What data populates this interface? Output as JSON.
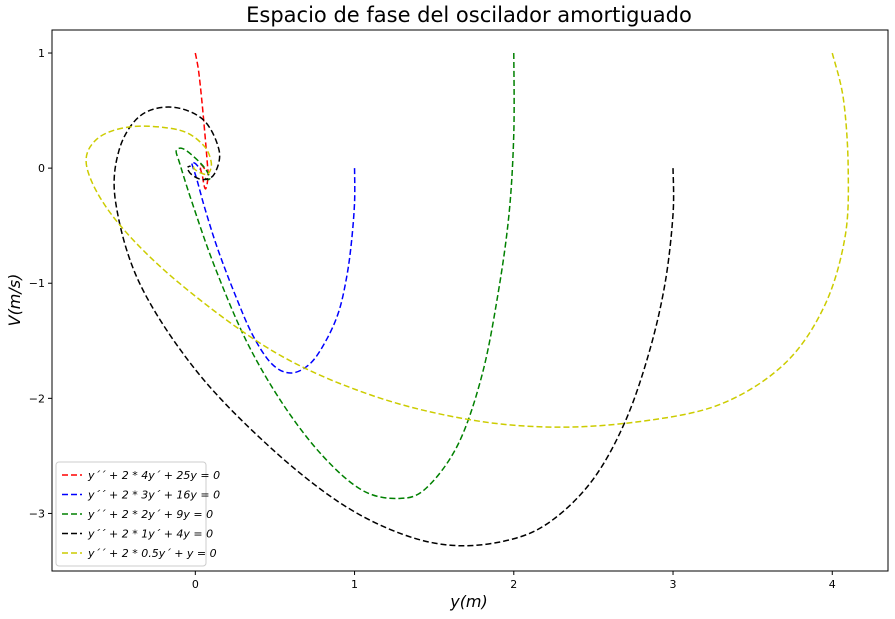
{
  "chart_data": {
    "type": "line",
    "title": "Espacio de fase del oscilador amortiguado",
    "xlabel": "y(m)",
    "ylabel": "V(m/s)",
    "xlim": [
      -0.9,
      4.35
    ],
    "ylim": [
      -3.5,
      1.2
    ],
    "xticks": [
      0,
      1,
      2,
      3,
      4
    ],
    "yticks": [
      1,
      0,
      -1,
      -2,
      -3
    ],
    "tick_labels_x": [
      "0",
      "1",
      "2",
      "3",
      "4"
    ],
    "tick_labels_y": [
      "1",
      "0",
      "−1",
      "−2",
      "−3"
    ],
    "legend_position": "lower-left",
    "line_style": "dashed",
    "grid": false,
    "series": [
      {
        "name": "y´´ + 2 * 4y´ + 25y = 0",
        "color": "#ff0000",
        "x": [
          0.0,
          0.02,
          0.04,
          0.06,
          0.075,
          0.08,
          0.075,
          0.065,
          0.055,
          0.045,
          0.035,
          0.03,
          0.035,
          0.045,
          0.055,
          0.06
        ],
        "y": [
          1.0,
          0.85,
          0.6,
          0.3,
          0.05,
          -0.05,
          -0.13,
          -0.18,
          -0.15,
          -0.07,
          -0.02,
          0.02,
          0.03,
          0.02,
          0.0,
          -0.01
        ]
      },
      {
        "name": "y´´ + 2 * 3y´ + 16y = 0",
        "color": "#0000ff",
        "x": [
          1.0,
          1.0,
          0.98,
          0.95,
          0.9,
          0.82,
          0.72,
          0.6,
          0.48,
          0.36,
          0.25,
          0.14,
          0.06,
          0.01,
          -0.02,
          -0.02,
          0.0,
          0.02,
          0.03
        ],
        "y": [
          0.0,
          -0.3,
          -0.65,
          -0.95,
          -1.25,
          -1.5,
          -1.7,
          -1.78,
          -1.7,
          -1.45,
          -1.1,
          -0.7,
          -0.35,
          -0.1,
          0.03,
          0.05,
          0.04,
          0.01,
          -0.01
        ]
      },
      {
        "name": "y´´ + 2 * 2y´ + 9y = 0",
        "color": "#008000",
        "x": [
          2.0,
          2.0,
          1.97,
          1.9,
          1.8,
          1.65,
          1.45,
          1.28,
          1.05,
          0.8,
          0.55,
          0.32,
          0.12,
          -0.02,
          -0.1,
          -0.12,
          -0.08,
          -0.01,
          0.06,
          0.09,
          0.08,
          0.05
        ],
        "y": [
          1.0,
          0.3,
          -0.4,
          -1.1,
          -1.8,
          -2.4,
          -2.78,
          -2.87,
          -2.8,
          -2.5,
          -2.05,
          -1.5,
          -0.85,
          -0.3,
          0.05,
          0.15,
          0.17,
          0.1,
          0.0,
          -0.08,
          -0.1,
          -0.08
        ]
      },
      {
        "name": "y´´ + 2 * 1y´ + 4y = 0",
        "color": "#000000",
        "x": [
          3.0,
          3.0,
          2.95,
          2.85,
          2.7,
          2.5,
          2.25,
          2.0,
          1.65,
          1.3,
          0.9,
          0.45,
          0.0,
          -0.35,
          -0.5,
          -0.48,
          -0.35,
          -0.15,
          0.05,
          0.15,
          0.12,
          0.05,
          -0.02,
          -0.05,
          -0.03
        ],
        "y": [
          0.0,
          -0.4,
          -1.0,
          -1.6,
          -2.2,
          -2.7,
          -3.05,
          -3.22,
          -3.28,
          -3.18,
          -2.9,
          -2.4,
          -1.75,
          -1.0,
          -0.3,
          0.15,
          0.45,
          0.53,
          0.42,
          0.15,
          -0.05,
          -0.1,
          -0.06,
          0.0,
          0.02
        ]
      },
      {
        "name": "y´´ + 2 * 0.5y´ + y = 0",
        "color": "#cccc00",
        "x": [
          4.0,
          4.07,
          4.1,
          4.08,
          3.95,
          3.7,
          3.3,
          2.8,
          2.25,
          1.7,
          1.1,
          0.5,
          -0.1,
          -0.5,
          -0.68,
          -0.62,
          -0.4,
          -0.1,
          0.05,
          0.1,
          0.08,
          0.03,
          -0.01,
          0.0
        ],
        "y": [
          1.0,
          0.6,
          0.0,
          -0.6,
          -1.2,
          -1.7,
          -2.05,
          -2.2,
          -2.25,
          -2.18,
          -1.97,
          -1.6,
          -1.0,
          -0.45,
          0.0,
          0.25,
          0.36,
          0.33,
          0.2,
          0.05,
          -0.05,
          -0.04,
          0.0,
          0.02
        ]
      }
    ]
  }
}
